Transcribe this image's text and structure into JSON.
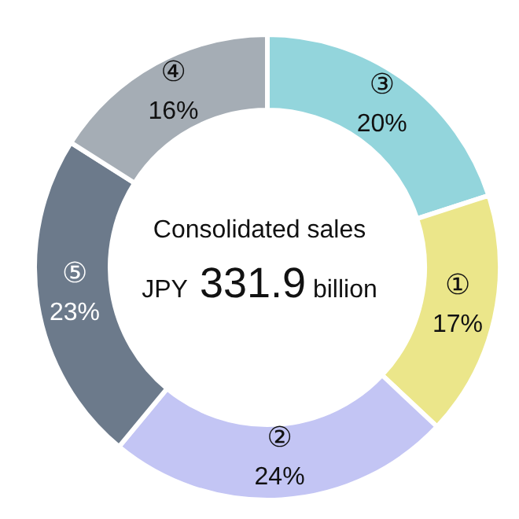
{
  "chart_data": {
    "type": "donut",
    "categories": [
      "③",
      "①",
      "②",
      "⑤",
      "④"
    ],
    "values": [
      20,
      17,
      24,
      23,
      16
    ],
    "value_labels": [
      "20%",
      "17%",
      "24%",
      "23%",
      "16%"
    ],
    "colors": [
      "#93d5dc",
      "#ebe68a",
      "#c3c5f4",
      "#6c7a8b",
      "#a5adb5"
    ],
    "annotations": [
      "Consolidated sales",
      "JPY 331.9 billion"
    ],
    "legend": false
  }
}
